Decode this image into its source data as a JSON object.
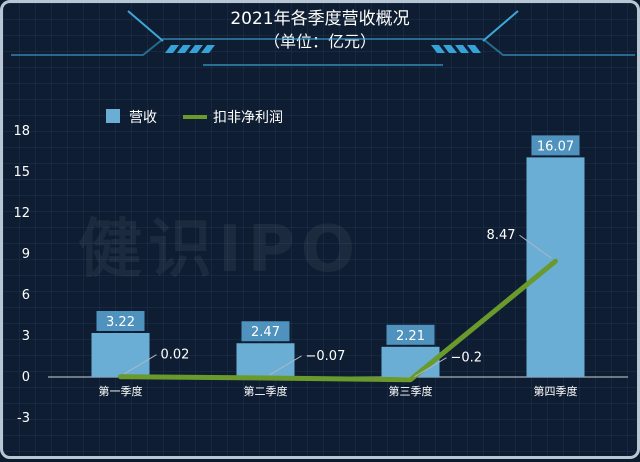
{
  "chart_data": {
    "type": "bar",
    "title": "2021年各季度营收概况",
    "subtitle": "（单位：亿元）",
    "categories": [
      "第一季度",
      "第二季度",
      "第三季度",
      "第四季度"
    ],
    "series": [
      {
        "name": "营收",
        "type": "bar",
        "values": [
          3.22,
          2.47,
          2.21,
          16.07
        ],
        "color": "#6aaed6"
      },
      {
        "name": "扣非净利润",
        "type": "line",
        "values": [
          0.02,
          -0.07,
          -0.2,
          8.47
        ],
        "color": "#6b9a2c"
      }
    ],
    "bar_labels": [
      "3.22",
      "2.47",
      "2.21",
      "16.07"
    ],
    "line_labels": [
      "0.02",
      "−0.07",
      "−0.2",
      "8.47"
    ],
    "yticks": [
      "18",
      "15",
      "12",
      "9",
      "6",
      "3",
      "0",
      "-3"
    ],
    "ylim": [
      -3,
      18
    ],
    "legend_position": "top-left",
    "grid": false,
    "watermark": "健识IPO"
  }
}
